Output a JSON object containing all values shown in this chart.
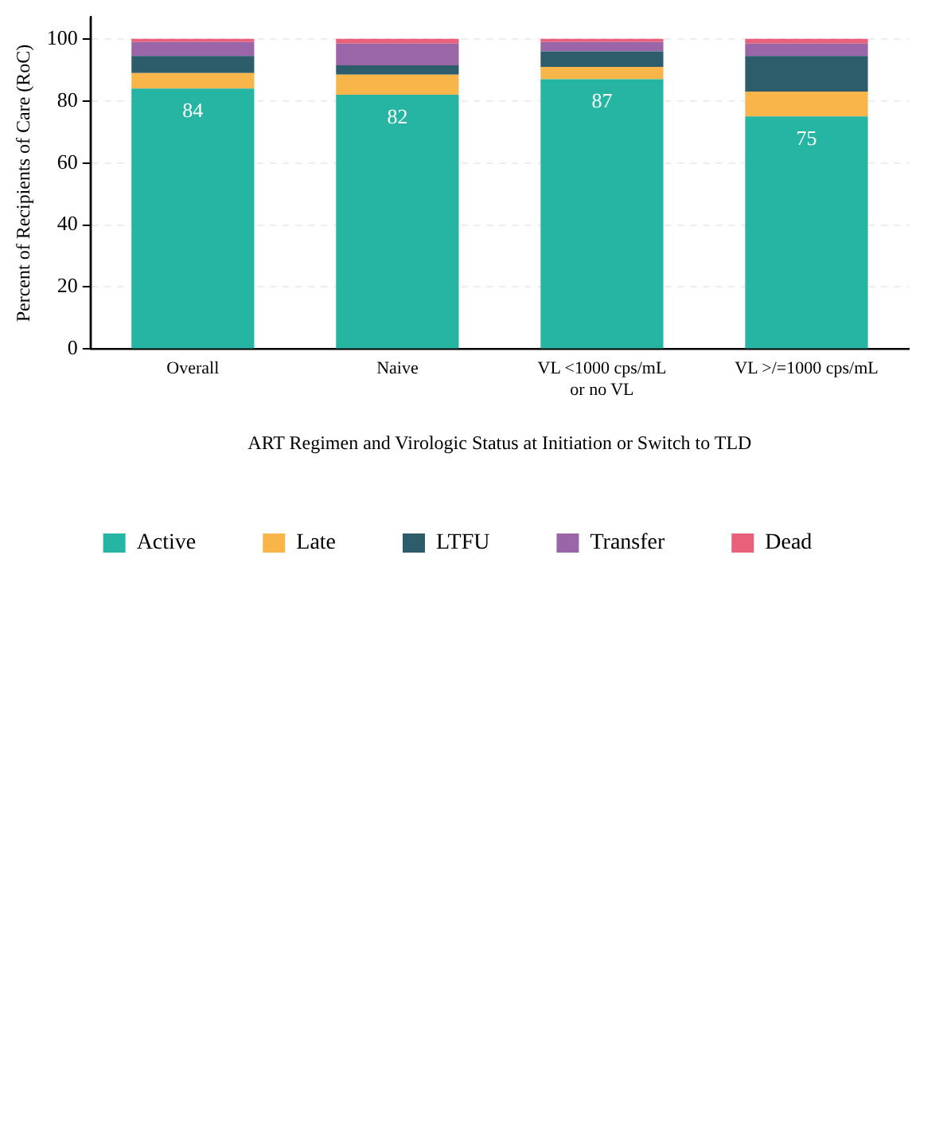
{
  "chart_data": {
    "type": "bar",
    "stacked": true,
    "xlabel": "ART Regimen and Virologic Status at Initiation or Switch to TLD",
    "ylabel": "Percent of Recipients of Care (RoC)",
    "categories": [
      "Overall",
      "Naive",
      "VL <1000 cps/mL\nor no VL",
      "VL >/=1000 cps/mL"
    ],
    "series": [
      {
        "name": "Active",
        "color": "#26b5a3",
        "values": [
          84,
          82,
          87,
          75
        ],
        "value_labels": [
          "84",
          "82",
          "87",
          "75"
        ]
      },
      {
        "name": "Late",
        "color": "#f8b54a",
        "values": [
          5,
          6.5,
          4,
          8
        ]
      },
      {
        "name": "LTFU",
        "color": "#2d5d6b",
        "values": [
          5.5,
          3,
          5,
          11.5
        ]
      },
      {
        "name": "Transfer",
        "color": "#9a66a8",
        "values": [
          4.5,
          7,
          3,
          4
        ]
      },
      {
        "name": "Dead",
        "color": "#e8607a",
        "values": [
          1,
          1.5,
          1,
          1.5
        ]
      }
    ],
    "ylim": [
      0,
      107
    ],
    "yticks": [
      0,
      20,
      40,
      60,
      80,
      100
    ],
    "grid": "y",
    "legend": "bottom"
  }
}
